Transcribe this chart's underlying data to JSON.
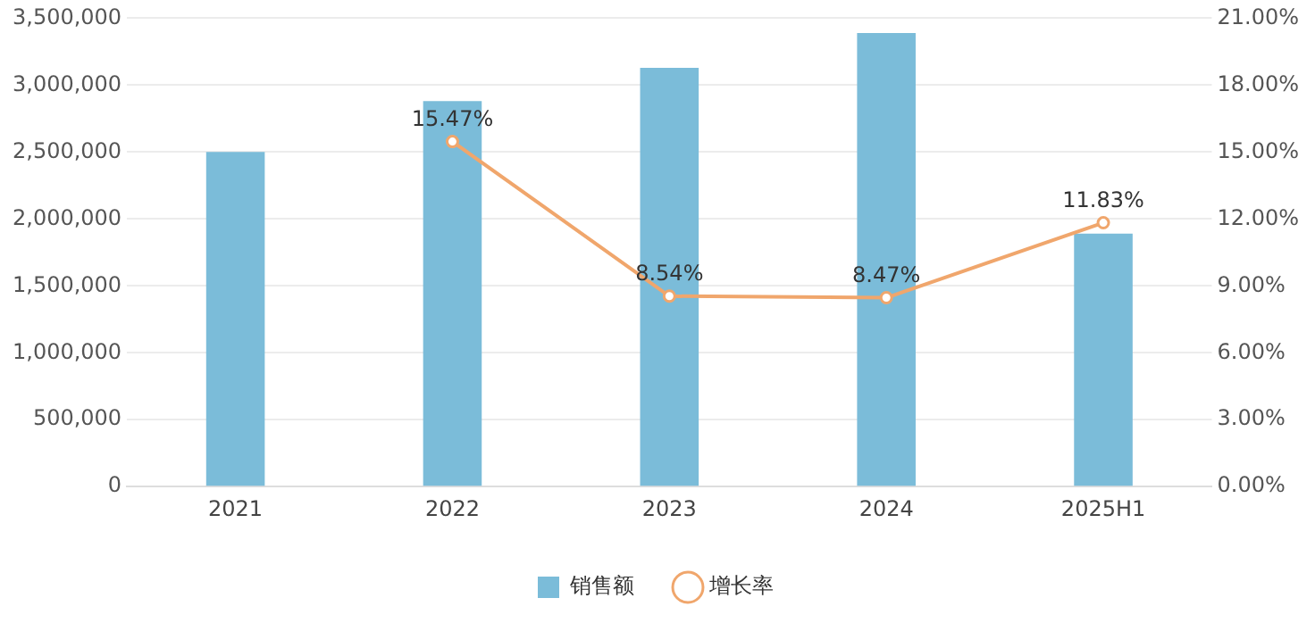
{
  "chart_data": {
    "type": "bar",
    "categories": [
      "2021",
      "2022",
      "2023",
      "2024",
      "2025H1"
    ],
    "series": [
      {
        "name": "销售额",
        "color": "#7bbcd9",
        "values": [
          2500000,
          2880000,
          3130000,
          3390000,
          1890000
        ]
      },
      {
        "name": "增长率",
        "type": "line",
        "axis": "y2",
        "color": "#f0a66c",
        "marker": "circle",
        "values": [
          null,
          15.47,
          8.54,
          8.47,
          11.83
        ],
        "value_labels": [
          null,
          "15.47%",
          "8.54%",
          "8.47%",
          "11.83%"
        ]
      }
    ],
    "ylim": [
      0,
      3500000
    ],
    "yticks": [
      {
        "value": 0,
        "label": "0"
      },
      {
        "value": 500000,
        "label": "500,000"
      },
      {
        "value": 1000000,
        "label": "1,000,000"
      },
      {
        "value": 1500000,
        "label": "1,500,000"
      },
      {
        "value": 2000000,
        "label": "2,000,000"
      },
      {
        "value": 2500000,
        "label": "2,500,000"
      },
      {
        "value": 3000000,
        "label": "3,000,000"
      },
      {
        "value": 3500000,
        "label": "3,500,000"
      }
    ],
    "y2lim": [
      0,
      21
    ],
    "y2ticks": [
      {
        "value": 0,
        "label": "0.00%"
      },
      {
        "value": 3,
        "label": "3.00%"
      },
      {
        "value": 6,
        "label": "6.00%"
      },
      {
        "value": 9,
        "label": "9.00%"
      },
      {
        "value": 12,
        "label": "12.00%"
      },
      {
        "value": 15,
        "label": "15.00%"
      },
      {
        "value": 18,
        "label": "18.00%"
      },
      {
        "value": 21,
        "label": "21.00%"
      }
    ],
    "grid": "y",
    "legend": "bottom"
  }
}
